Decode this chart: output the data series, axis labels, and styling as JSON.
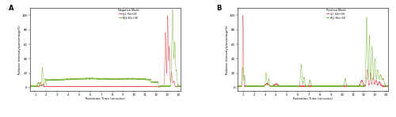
{
  "panel_A": {
    "title": "A",
    "legend_title": "Negative Mode",
    "legend_red": "d_1.70e+08",
    "legend_green": "W_2.60e+08",
    "xlabel": "Retention Time (minutes)",
    "ylabel": "Relative Intensity(percentage%)",
    "xlim": [
      0.5,
      14.2
    ],
    "ylim": [
      -5,
      110
    ],
    "xticks": [
      1,
      2,
      3,
      4,
      5,
      6,
      7,
      8,
      9,
      10,
      11,
      12,
      13,
      14
    ],
    "yticks": [
      0,
      20,
      40,
      60,
      80,
      100
    ],
    "red_color": "#e05050",
    "green_color": "#78b83a"
  },
  "panel_B": {
    "title": "B",
    "legend_title": "Positive Mode",
    "legend_red": "G_1.54e+09",
    "legend_green": "W_1.96e+09",
    "xlabel": "Retention Time (minutes)",
    "ylabel": "Relative Intensity(percentage%)",
    "xlim": [
      0.5,
      14.2
    ],
    "ylim": [
      -5,
      110
    ],
    "xticks": [
      1,
      2,
      3,
      4,
      5,
      6,
      7,
      8,
      9,
      10,
      11,
      12,
      13,
      14
    ],
    "yticks": [
      0,
      20,
      40,
      60,
      80,
      100
    ],
    "red_color": "#e05050",
    "green_color": "#78b83a"
  }
}
